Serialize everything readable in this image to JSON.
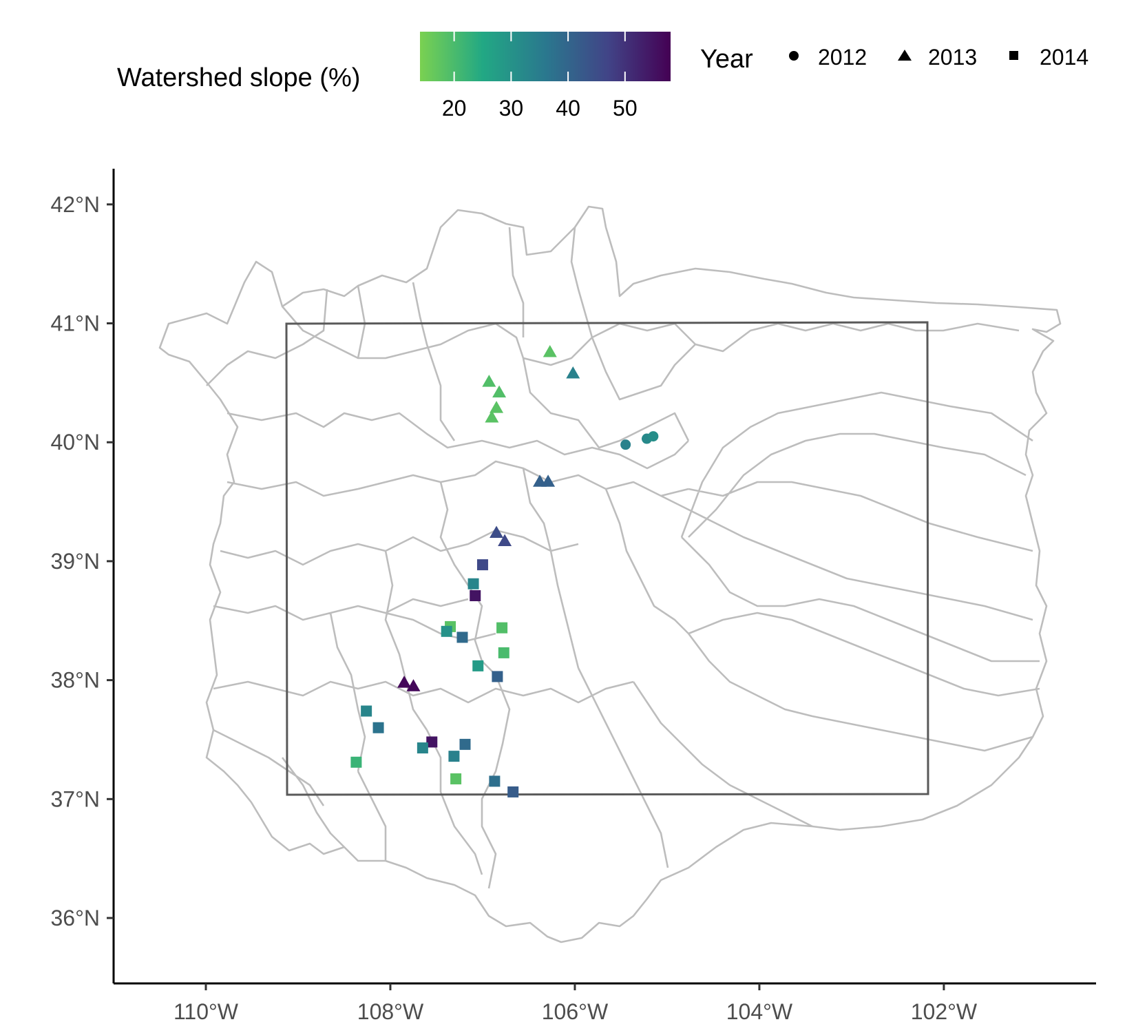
{
  "chart_data": {
    "type": "scatter",
    "title": "",
    "xlabel": "",
    "ylabel": "",
    "xlim": [
      -111.0,
      -100.35
    ],
    "ylim": [
      35.45,
      42.3
    ],
    "x_ticks": [
      -110,
      -108,
      -106,
      -104,
      -102
    ],
    "x_tick_labels": [
      "110°W",
      "108°W",
      "106°W",
      "104°W",
      "102°W"
    ],
    "y_ticks": [
      36,
      37,
      38,
      39,
      40,
      41,
      42
    ],
    "y_tick_labels": [
      "36°N",
      "37°N",
      "38°N",
      "39°N",
      "40°N",
      "41°N",
      "42°N"
    ],
    "grid": false,
    "basemap": {
      "state_boundary": {
        "lon": [
          -109.05,
          -102.05
        ],
        "lat": [
          37.0,
          41.0
        ]
      },
      "watershed_lines": "light gray outlines"
    },
    "color_legend": {
      "title": "Watershed slope (%)",
      "ticks": [
        20,
        30,
        40,
        50
      ],
      "range": [
        14,
        58
      ],
      "colors": [
        "#7ad151",
        "#22a884",
        "#2a788e",
        "#414487",
        "#440154"
      ],
      "placement": "top"
    },
    "shape_legend": {
      "title": "Year",
      "items": [
        {
          "label": "2012",
          "shape": "circle"
        },
        {
          "label": "2013",
          "shape": "triangle"
        },
        {
          "label": "2014",
          "shape": "square"
        }
      ],
      "placement": "top-right"
    },
    "series": [
      {
        "name": "2012",
        "shape": "circle",
        "points": [
          {
            "lon": -105.45,
            "lat": 39.98,
            "slope": 34
          },
          {
            "lon": -105.22,
            "lat": 40.03,
            "slope": 32
          },
          {
            "lon": -105.15,
            "lat": 40.05,
            "slope": 31
          }
        ]
      },
      {
        "name": "2013",
        "shape": "triangle",
        "points": [
          {
            "lon": -106.27,
            "lat": 40.76,
            "slope": 18
          },
          {
            "lon": -106.02,
            "lat": 40.58,
            "slope": 34
          },
          {
            "lon": -106.93,
            "lat": 40.51,
            "slope": 19
          },
          {
            "lon": -106.82,
            "lat": 40.42,
            "slope": 19
          },
          {
            "lon": -106.85,
            "lat": 40.29,
            "slope": 18
          },
          {
            "lon": -106.9,
            "lat": 40.21,
            "slope": 18
          },
          {
            "lon": -106.38,
            "lat": 39.67,
            "slope": 41
          },
          {
            "lon": -106.29,
            "lat": 39.67,
            "slope": 41
          },
          {
            "lon": -106.85,
            "lat": 39.24,
            "slope": 45
          },
          {
            "lon": -106.76,
            "lat": 39.17,
            "slope": 46
          },
          {
            "lon": -107.85,
            "lat": 37.98,
            "slope": 57
          },
          {
            "lon": -107.75,
            "lat": 37.95,
            "slope": 57
          }
        ]
      },
      {
        "name": "2014",
        "shape": "square",
        "points": [
          {
            "lon": -107.0,
            "lat": 38.97,
            "slope": 46
          },
          {
            "lon": -107.1,
            "lat": 38.81,
            "slope": 33
          },
          {
            "lon": -107.08,
            "lat": 38.71,
            "slope": 55
          },
          {
            "lon": -107.35,
            "lat": 38.45,
            "slope": 18
          },
          {
            "lon": -107.39,
            "lat": 38.41,
            "slope": 30
          },
          {
            "lon": -107.22,
            "lat": 38.36,
            "slope": 39
          },
          {
            "lon": -106.79,
            "lat": 38.44,
            "slope": 19
          },
          {
            "lon": -106.77,
            "lat": 38.23,
            "slope": 20
          },
          {
            "lon": -107.05,
            "lat": 38.12,
            "slope": 28
          },
          {
            "lon": -106.84,
            "lat": 38.03,
            "slope": 41
          },
          {
            "lon": -108.26,
            "lat": 37.74,
            "slope": 33
          },
          {
            "lon": -108.13,
            "lat": 37.6,
            "slope": 37
          },
          {
            "lon": -107.55,
            "lat": 37.48,
            "slope": 55
          },
          {
            "lon": -107.65,
            "lat": 37.43,
            "slope": 33
          },
          {
            "lon": -107.19,
            "lat": 37.46,
            "slope": 39
          },
          {
            "lon": -107.31,
            "lat": 37.36,
            "slope": 34
          },
          {
            "lon": -107.29,
            "lat": 37.17,
            "slope": 18
          },
          {
            "lon": -106.87,
            "lat": 37.15,
            "slope": 38
          },
          {
            "lon": -106.67,
            "lat": 37.06,
            "slope": 42
          },
          {
            "lon": -108.37,
            "lat": 37.31,
            "slope": 22
          }
        ]
      }
    ]
  }
}
